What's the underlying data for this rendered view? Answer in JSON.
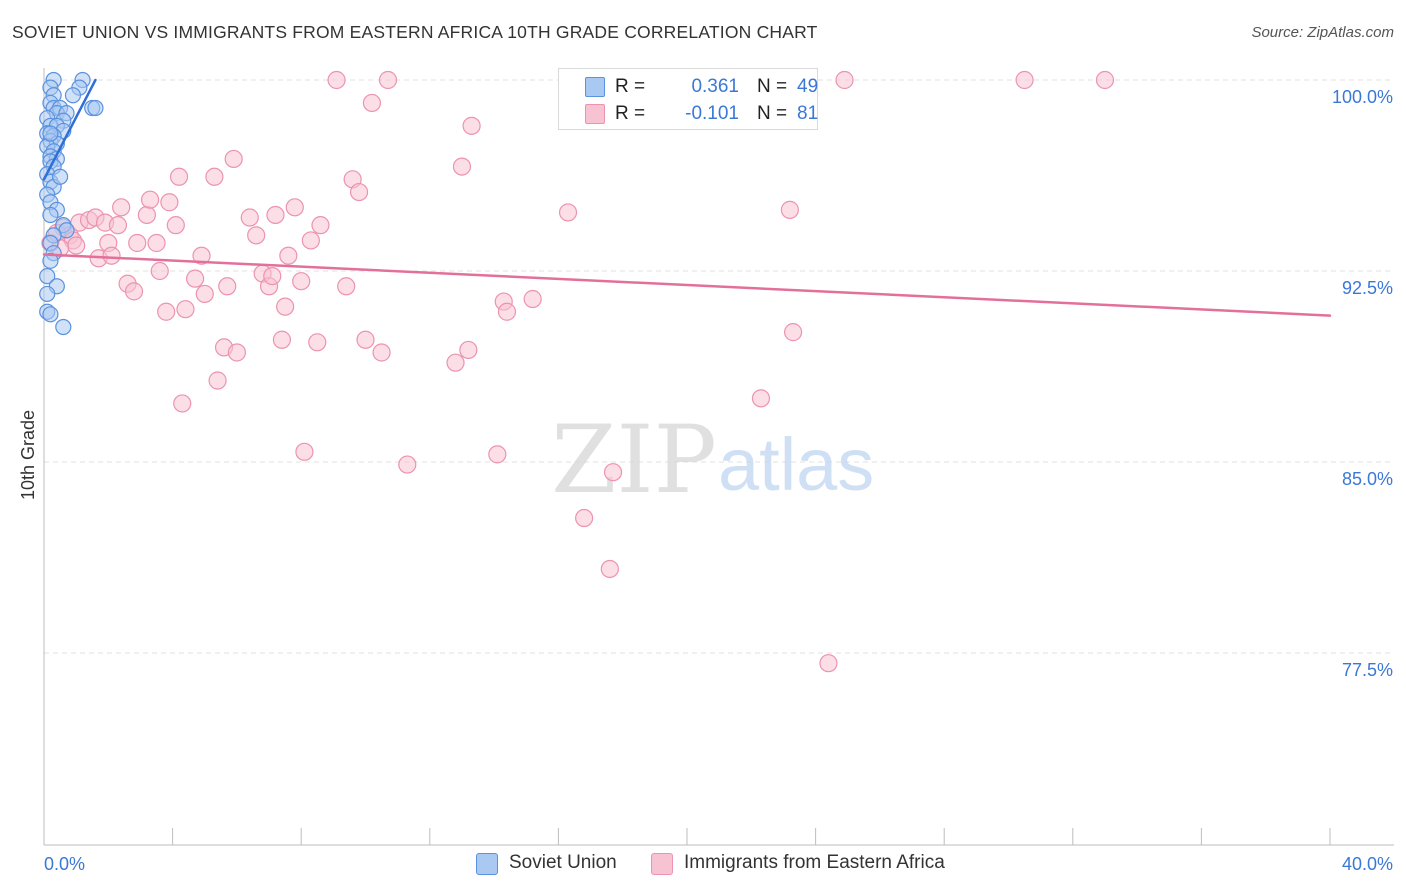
{
  "header": {
    "title": "SOVIET UNION VS IMMIGRANTS FROM EASTERN AFRICA 10TH GRADE CORRELATION CHART",
    "source": "Source: ZipAtlas.com"
  },
  "legend": {
    "rows": [
      {
        "r_label": "R =",
        "r_value": "0.361",
        "n_label": "N =",
        "n_value": "49"
      },
      {
        "r_label": "R =",
        "r_value": "-0.101",
        "n_label": "N =",
        "n_value": "81"
      }
    ]
  },
  "bottom_legend": [
    "Soviet Union",
    "Immigrants from Eastern Africa"
  ],
  "watermark": {
    "zip": "ZIP",
    "atlas": "atlas"
  },
  "colors": {
    "blue_fill": "#a9c8f2",
    "blue_stroke": "#5a92de",
    "blue_line": "#2f6fd6",
    "pink_fill": "#f7c3d2",
    "pink_stroke": "#ec93b0",
    "pink_line": "#e3709a",
    "tick_label": "#3a78d8",
    "grid": "#e2e2e2"
  },
  "chart_data": {
    "type": "scatter",
    "title": "SOVIET UNION VS IMMIGRANTS FROM EASTERN AFRICA 10TH GRADE CORRELATION CHART",
    "xlabel": "",
    "ylabel": "10th Grade",
    "xlim": [
      0,
      40
    ],
    "ylim": [
      70,
      101.5
    ],
    "x_tick_labels": [
      "0.0%",
      "40.0%"
    ],
    "y_ticks": [
      {
        "value": 100,
        "label": "100.0%"
      },
      {
        "value": 92.5,
        "label": "92.5%"
      },
      {
        "value": 85,
        "label": "85.0%"
      },
      {
        "value": 77.5,
        "label": "77.5%"
      }
    ],
    "grid": true,
    "series": [
      {
        "name": "Soviet Union",
        "r": 0.361,
        "n": 49,
        "trend": {
          "x0": 0.0,
          "y0": 96.1,
          "x1": 1.6,
          "y1": 100.0
        },
        "points": [
          [
            0.3,
            100.0
          ],
          [
            1.2,
            100.0
          ],
          [
            0.2,
            99.7
          ],
          [
            1.1,
            99.7
          ],
          [
            0.3,
            99.4
          ],
          [
            0.9,
            99.4
          ],
          [
            0.2,
            99.1
          ],
          [
            0.3,
            98.9
          ],
          [
            0.5,
            98.9
          ],
          [
            1.5,
            98.9
          ],
          [
            1.6,
            98.9
          ],
          [
            0.4,
            98.7
          ],
          [
            0.7,
            98.7
          ],
          [
            0.1,
            98.5
          ],
          [
            0.6,
            98.4
          ],
          [
            0.2,
            98.2
          ],
          [
            0.4,
            98.2
          ],
          [
            0.6,
            98.0
          ],
          [
            0.1,
            97.9
          ],
          [
            0.3,
            97.8
          ],
          [
            0.2,
            97.6
          ],
          [
            0.4,
            97.5
          ],
          [
            0.1,
            97.4
          ],
          [
            0.3,
            97.2
          ],
          [
            0.2,
            97.0
          ],
          [
            0.4,
            96.9
          ],
          [
            0.2,
            96.8
          ],
          [
            0.3,
            96.6
          ],
          [
            0.1,
            96.3
          ],
          [
            0.2,
            96.0
          ],
          [
            0.3,
            95.8
          ],
          [
            0.1,
            95.5
          ],
          [
            0.2,
            95.2
          ],
          [
            0.4,
            94.9
          ],
          [
            0.2,
            94.7
          ],
          [
            0.6,
            94.3
          ],
          [
            0.7,
            94.1
          ],
          [
            0.3,
            93.9
          ],
          [
            0.2,
            93.6
          ],
          [
            0.1,
            92.3
          ],
          [
            0.4,
            91.9
          ],
          [
            0.1,
            91.6
          ],
          [
            0.1,
            90.9
          ],
          [
            0.2,
            90.8
          ],
          [
            0.6,
            90.3
          ],
          [
            0.3,
            93.2
          ],
          [
            0.2,
            92.9
          ],
          [
            0.5,
            96.2
          ],
          [
            0.2,
            97.9
          ]
        ]
      },
      {
        "name": "Immigrants from Eastern Africa",
        "r": -0.101,
        "n": 81,
        "trend": {
          "x0": 0.0,
          "y0": 93.15,
          "x1": 40.0,
          "y1": 90.75
        },
        "points": [
          [
            0.2,
            93.6
          ],
          [
            0.6,
            94.2
          ],
          [
            0.8,
            93.9
          ],
          [
            0.9,
            93.7
          ],
          [
            1.1,
            94.4
          ],
          [
            1.4,
            94.5
          ],
          [
            1.6,
            94.6
          ],
          [
            1.7,
            93.0
          ],
          [
            1.9,
            94.4
          ],
          [
            2.0,
            93.6
          ],
          [
            2.1,
            93.1
          ],
          [
            2.3,
            94.3
          ],
          [
            2.4,
            95.0
          ],
          [
            2.6,
            92.0
          ],
          [
            2.8,
            91.7
          ],
          [
            2.9,
            93.6
          ],
          [
            3.2,
            94.7
          ],
          [
            3.3,
            95.3
          ],
          [
            3.5,
            93.6
          ],
          [
            3.6,
            92.5
          ],
          [
            3.8,
            90.9
          ],
          [
            3.9,
            95.2
          ],
          [
            4.1,
            94.3
          ],
          [
            4.2,
            96.2
          ],
          [
            4.4,
            91.0
          ],
          [
            4.3,
            87.3
          ],
          [
            4.7,
            92.2
          ],
          [
            4.9,
            93.1
          ],
          [
            5.0,
            91.6
          ],
          [
            5.3,
            96.2
          ],
          [
            5.4,
            88.2
          ],
          [
            5.6,
            89.5
          ],
          [
            5.7,
            91.9
          ],
          [
            5.9,
            96.9
          ],
          [
            6.0,
            89.3
          ],
          [
            6.4,
            94.6
          ],
          [
            6.6,
            93.9
          ],
          [
            6.8,
            92.4
          ],
          [
            7.0,
            91.9
          ],
          [
            7.1,
            92.3
          ],
          [
            7.2,
            94.7
          ],
          [
            7.4,
            89.8
          ],
          [
            7.5,
            91.1
          ],
          [
            7.6,
            93.1
          ],
          [
            7.8,
            95.0
          ],
          [
            8.0,
            92.1
          ],
          [
            8.1,
            85.4
          ],
          [
            8.3,
            93.7
          ],
          [
            8.5,
            89.7
          ],
          [
            8.6,
            94.3
          ],
          [
            9.1,
            100.0
          ],
          [
            9.4,
            91.9
          ],
          [
            9.6,
            96.1
          ],
          [
            9.8,
            95.6
          ],
          [
            10.0,
            89.8
          ],
          [
            10.2,
            99.1
          ],
          [
            10.5,
            89.3
          ],
          [
            10.7,
            100.0
          ],
          [
            11.3,
            84.9
          ],
          [
            12.8,
            88.9
          ],
          [
            13.0,
            96.6
          ],
          [
            13.2,
            89.4
          ],
          [
            13.3,
            98.2
          ],
          [
            14.1,
            85.3
          ],
          [
            14.3,
            91.3
          ],
          [
            14.4,
            90.9
          ],
          [
            15.2,
            91.4
          ],
          [
            16.3,
            94.8
          ],
          [
            16.8,
            82.8
          ],
          [
            17.6,
            80.8
          ],
          [
            17.7,
            84.6
          ],
          [
            22.3,
            87.5
          ],
          [
            23.2,
            94.9
          ],
          [
            23.3,
            90.1
          ],
          [
            24.4,
            77.1
          ],
          [
            24.9,
            100.0
          ],
          [
            30.5,
            100.0
          ],
          [
            33.0,
            100.0
          ],
          [
            1.0,
            93.5
          ],
          [
            0.4,
            94.0
          ],
          [
            0.5,
            93.4
          ]
        ]
      }
    ]
  }
}
